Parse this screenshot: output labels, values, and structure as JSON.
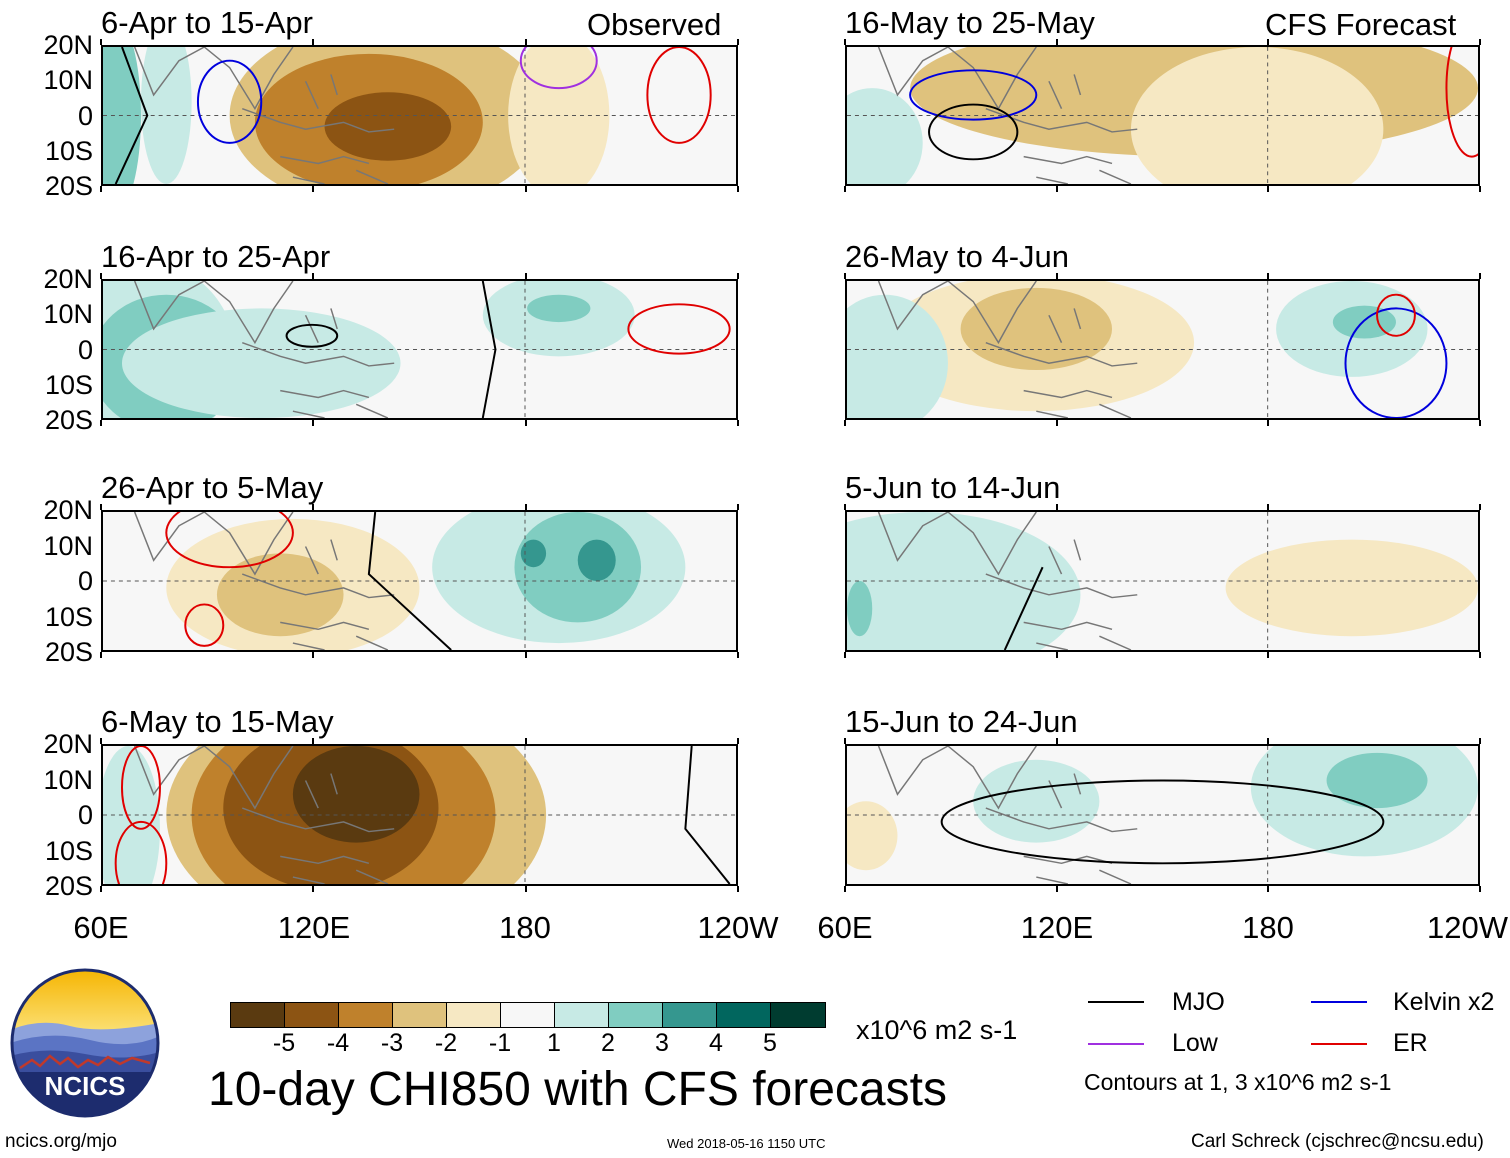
{
  "observed_label": "Observed",
  "forecast_label": "CFS Forecast",
  "lat_labels": [
    "20N",
    "10N",
    "0",
    "10S",
    "20S"
  ],
  "lon_labels": [
    "60E",
    "120E",
    "180",
    "120W"
  ],
  "panels": [
    {
      "title": "6-Apr to 15-Apr"
    },
    {
      "title": "16-Apr to 25-Apr"
    },
    {
      "title": "26-Apr to 5-May"
    },
    {
      "title": "6-May to 15-May"
    },
    {
      "title": "16-May to 25-May"
    },
    {
      "title": "26-May to 4-Jun"
    },
    {
      "title": "5-Jun to 14-Jun"
    },
    {
      "title": "15-Jun to 24-Jun"
    }
  ],
  "colorbar": {
    "colors": [
      "#5a3a10",
      "#8c5413",
      "#bf812c",
      "#dfc27d",
      "#f6e8c3",
      "#f7f7f7",
      "#c7eae5",
      "#80cdc1",
      "#35978f",
      "#01665e",
      "#003c30"
    ],
    "ticks": [
      "-5",
      "-4",
      "-3",
      "-2",
      "-1",
      "1",
      "2",
      "3",
      "4",
      "5"
    ],
    "units": "x10^6 m2 s-1"
  },
  "title": "10-day CHI850 with CFS forecasts",
  "contour_key": {
    "items": [
      {
        "label": "MJO",
        "color": "#000000"
      },
      {
        "label": "Kelvin x2",
        "color": "#0000dd"
      },
      {
        "label": "Low",
        "color": "#a030e0"
      },
      {
        "label": "ER",
        "color": "#e00000"
      }
    ],
    "note": "Contours at 1, 3 x10^6 m2 s-1"
  },
  "logo": {
    "text": "NCICS"
  },
  "footer": {
    "url": "ncics.org/mjo",
    "timestamp": "Wed 2018-05-16 1150 UTC",
    "author": "Carl Schreck (cjschrec@ncsu.edu)"
  }
}
